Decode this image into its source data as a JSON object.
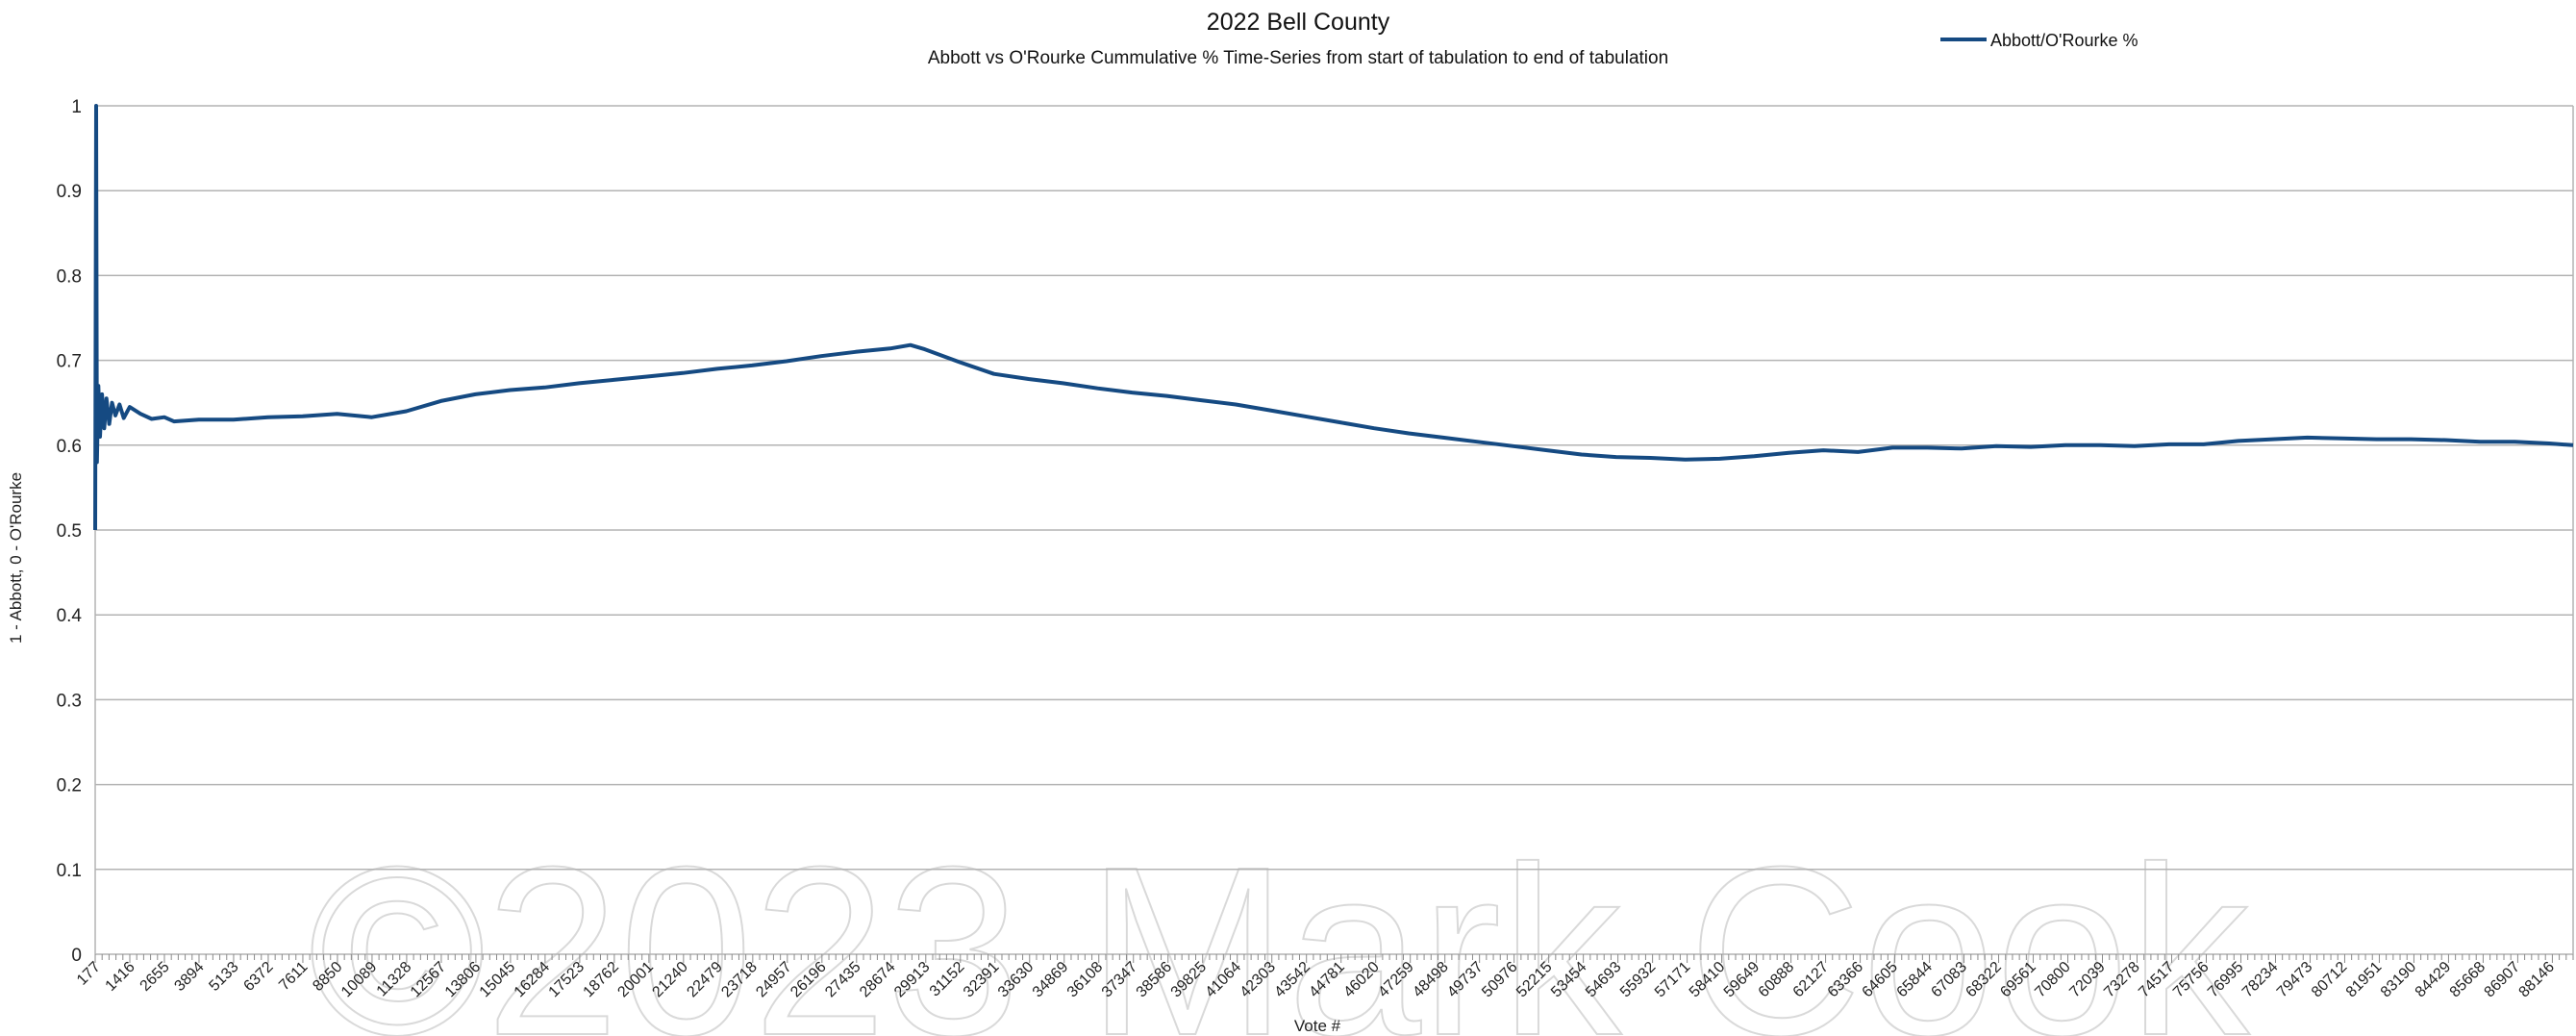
{
  "chart_data": {
    "type": "line",
    "title": "2022 Bell County",
    "subtitle": "Abbott vs O'Rourke Cummulative % Time-Series from start of tabulation to end of tabulation",
    "xlabel": "Vote #",
    "ylabel": "1 - Abbott, 0 - O'Rourke",
    "ylim": [
      0,
      1
    ],
    "xlim": [
      177,
      89000
    ],
    "yticks": [
      "0",
      "0.1",
      "0.2",
      "0.3",
      "0.4",
      "0.5",
      "0.6",
      "0.7",
      "0.8",
      "0.9",
      "1"
    ],
    "xticks": [
      "177",
      "1416",
      "2655",
      "3894",
      "5133",
      "6372",
      "7611",
      "8850",
      "10089",
      "11328",
      "12567",
      "13806",
      "15045",
      "16284",
      "17523",
      "18762",
      "20001",
      "21240",
      "22479",
      "23718",
      "24957",
      "26196",
      "27435",
      "28674",
      "29913",
      "31152",
      "32391",
      "33630",
      "34869",
      "36108",
      "37347",
      "38586",
      "39825",
      "41064",
      "42303",
      "43542",
      "44781",
      "46020",
      "47259",
      "48498",
      "49737",
      "50976",
      "52215",
      "53454",
      "54693",
      "55932",
      "57171",
      "58410",
      "59649",
      "60888",
      "62127",
      "63366",
      "64605",
      "65844",
      "67083",
      "68322",
      "69561",
      "70800",
      "72039",
      "73278",
      "74517",
      "75756",
      "76995",
      "78234",
      "79473",
      "80712",
      "81951",
      "83190",
      "84429",
      "85668",
      "86907",
      "88146"
    ],
    "legend_position": "top-right",
    "grid": true,
    "series": [
      {
        "name": "Abbott/O'Rourke %",
        "color": "#154a82",
        "points": [
          [
            177,
            0.5
          ],
          [
            210,
            1.0
          ],
          [
            240,
            0.58
          ],
          [
            290,
            0.67
          ],
          [
            350,
            0.61
          ],
          [
            420,
            0.66
          ],
          [
            500,
            0.62
          ],
          [
            580,
            0.655
          ],
          [
            680,
            0.625
          ],
          [
            780,
            0.65
          ],
          [
            900,
            0.635
          ],
          [
            1050,
            0.648
          ],
          [
            1200,
            0.632
          ],
          [
            1416,
            0.645
          ],
          [
            1800,
            0.637
          ],
          [
            2200,
            0.631
          ],
          [
            2655,
            0.633
          ],
          [
            3000,
            0.628
          ],
          [
            3894,
            0.63
          ],
          [
            5133,
            0.63
          ],
          [
            6372,
            0.633
          ],
          [
            7611,
            0.634
          ],
          [
            8850,
            0.637
          ],
          [
            10089,
            0.633
          ],
          [
            11328,
            0.64
          ],
          [
            12567,
            0.652
          ],
          [
            13806,
            0.66
          ],
          [
            15045,
            0.665
          ],
          [
            16284,
            0.668
          ],
          [
            17523,
            0.673
          ],
          [
            18762,
            0.677
          ],
          [
            20001,
            0.681
          ],
          [
            21240,
            0.685
          ],
          [
            22479,
            0.69
          ],
          [
            23718,
            0.694
          ],
          [
            24957,
            0.699
          ],
          [
            26196,
            0.705
          ],
          [
            27435,
            0.71
          ],
          [
            28674,
            0.714
          ],
          [
            29400,
            0.718
          ],
          [
            29913,
            0.713
          ],
          [
            31152,
            0.698
          ],
          [
            32391,
            0.684
          ],
          [
            33630,
            0.678
          ],
          [
            34869,
            0.673
          ],
          [
            36108,
            0.667
          ],
          [
            37347,
            0.662
          ],
          [
            38586,
            0.658
          ],
          [
            39825,
            0.653
          ],
          [
            41064,
            0.648
          ],
          [
            42303,
            0.641
          ],
          [
            43542,
            0.634
          ],
          [
            44781,
            0.627
          ],
          [
            46020,
            0.62
          ],
          [
            47259,
            0.614
          ],
          [
            48498,
            0.609
          ],
          [
            49737,
            0.604
          ],
          [
            50976,
            0.599
          ],
          [
            52215,
            0.594
          ],
          [
            53454,
            0.589
          ],
          [
            54693,
            0.586
          ],
          [
            55932,
            0.585
          ],
          [
            57171,
            0.583
          ],
          [
            58410,
            0.584
          ],
          [
            59649,
            0.587
          ],
          [
            60888,
            0.591
          ],
          [
            62127,
            0.594
          ],
          [
            63366,
            0.592
          ],
          [
            64605,
            0.597
          ],
          [
            65844,
            0.597
          ],
          [
            67083,
            0.596
          ],
          [
            68322,
            0.599
          ],
          [
            69561,
            0.598
          ],
          [
            70800,
            0.6
          ],
          [
            72039,
            0.6
          ],
          [
            73278,
            0.599
          ],
          [
            74517,
            0.601
          ],
          [
            75756,
            0.601
          ],
          [
            76995,
            0.605
          ],
          [
            78234,
            0.607
          ],
          [
            79473,
            0.609
          ],
          [
            80712,
            0.608
          ],
          [
            81951,
            0.607
          ],
          [
            83190,
            0.607
          ],
          [
            84429,
            0.606
          ],
          [
            85668,
            0.604
          ],
          [
            86907,
            0.604
          ],
          [
            88146,
            0.602
          ],
          [
            89000,
            0.6
          ]
        ]
      }
    ]
  },
  "watermark": "©2023 Mark Cook",
  "icons": {
    "legend_swatch": "line-swatch-icon"
  }
}
